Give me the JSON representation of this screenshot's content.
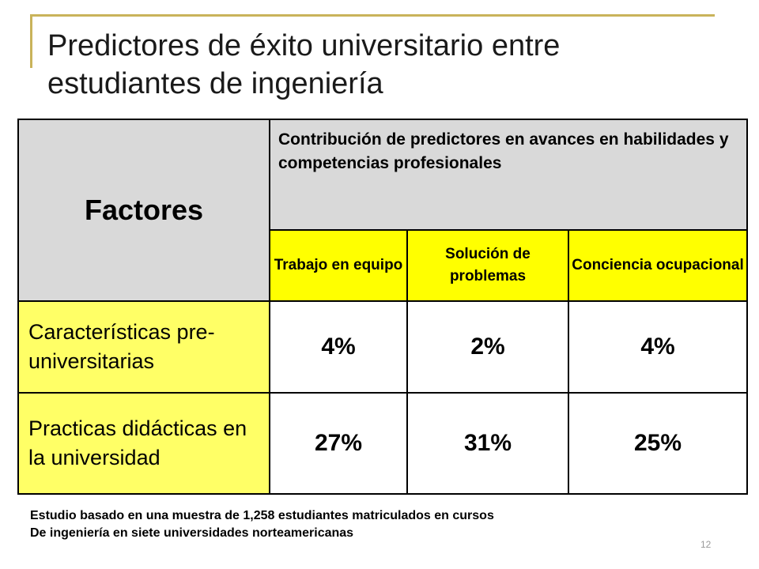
{
  "slide": {
    "title_line1": "Predictores de éxito universitario entre",
    "title_line2": "estudiantes de ingeniería",
    "page_number": "12"
  },
  "table": {
    "corner_header": "Factores",
    "group_header": "Contribución de predictores en avances en habilidades y competencias profesionales",
    "columns": [
      "Trabajo en equipo",
      "Solución de problemas",
      "Conciencia ocupacional"
    ],
    "rows": [
      {
        "label": "Características pre-universitarias",
        "values": [
          "4%",
          "2%",
          "4%"
        ]
      },
      {
        "label": "Practicas didácticas en la universidad",
        "values": [
          "27%",
          "31%",
          "25%"
        ]
      }
    ]
  },
  "footnote": {
    "line1": "Estudio basado en una muestra de 1,258 estudiantes matriculados en cursos",
    "line2": "De ingeniería en siete universidades norteamericanas"
  },
  "colors": {
    "accent_line": "#c9b35a",
    "header_gray": "#d9d9d9",
    "subheader_yellow": "#ffff00",
    "row_label_yellow": "#ffff66"
  }
}
